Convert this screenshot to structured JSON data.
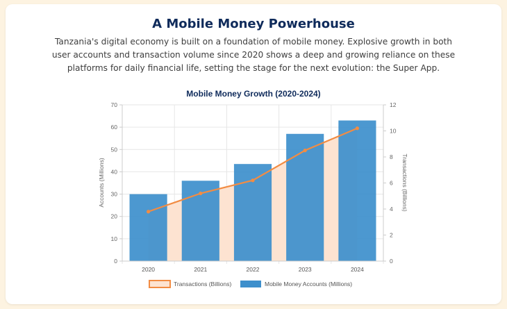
{
  "page": {
    "title": "A Mobile Money Powerhouse",
    "description": "Tanzania's digital economy is built on a foundation of mobile money. Explosive growth in both user accounts and transaction volume since 2020 shows a deep and growing reliance on these platforms for daily financial life, setting the stage for the next evolution: the Super App."
  },
  "chart_data": {
    "type": "bar",
    "title": "Mobile Money Growth (2020-2024)",
    "categories": [
      "2020",
      "2021",
      "2022",
      "2023",
      "2024"
    ],
    "ylabel": "Accounts (Millions)",
    "y2label": "Transactions (Billions)",
    "ylim": [
      0,
      70
    ],
    "yticks": [
      0,
      10,
      20,
      30,
      40,
      50,
      60,
      70
    ],
    "y2lim": [
      0,
      12
    ],
    "y2ticks": [
      0,
      2,
      4,
      6,
      8,
      10,
      12
    ],
    "grid": true,
    "legend_position": "bottom",
    "series": [
      {
        "name": "Transactions (Billions)",
        "kind": "area-line",
        "axis": "right",
        "values": [
          3.8,
          5.2,
          6.2,
          8.5,
          10.2
        ],
        "color": "#f28c43",
        "fill": "#fde3d1"
      },
      {
        "name": "Mobile Money Accounts (Millions)",
        "kind": "bar",
        "axis": "left",
        "values": [
          30,
          36,
          43.5,
          57,
          63
        ],
        "color": "#3d8fcc"
      }
    ]
  }
}
